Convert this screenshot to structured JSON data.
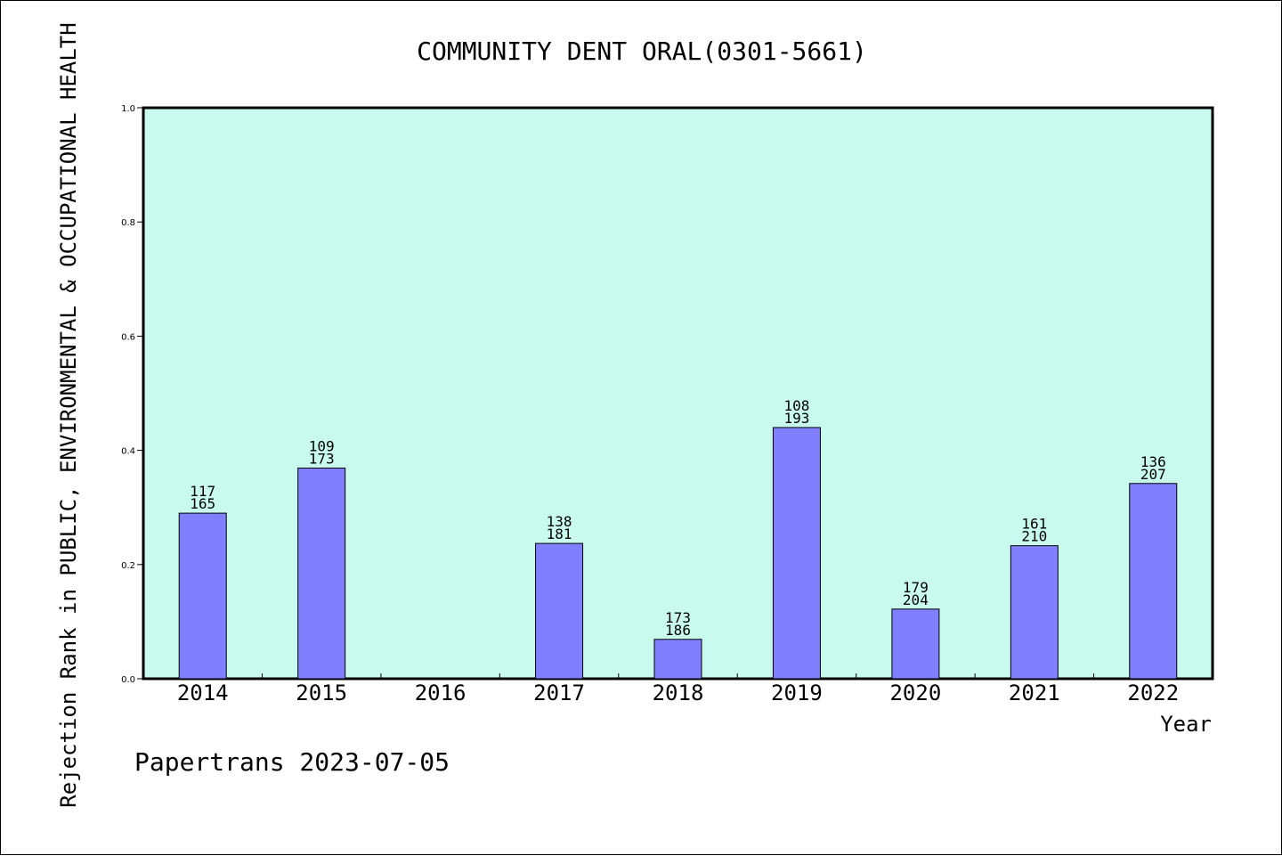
{
  "colors": {
    "plot_background": "#c8faee",
    "bar_fill": "#8080ff",
    "bar_stroke": "#000000",
    "frame": "#000000"
  },
  "chart_data": {
    "type": "bar",
    "title": "COMMUNITY DENT ORAL(0301-5661)",
    "xlabel": "Year",
    "ylabel": "Rejection Rank in PUBLIC, ENVIRONMENTAL & OCCUPATIONAL HEALTH",
    "ylim": [
      0,
      1.0
    ],
    "yticks": [
      "0.0",
      "0.2",
      "0.4",
      "0.6",
      "0.8",
      "1.0"
    ],
    "grid": false,
    "categories": [
      "2014",
      "2015",
      "2016",
      "2017",
      "2018",
      "2019",
      "2020",
      "2021",
      "2022"
    ],
    "values": [
      0.29,
      0.369,
      null,
      0.237,
      0.069,
      0.44,
      0.122,
      0.233,
      0.342
    ],
    "labels_top": [
      "117",
      "109",
      "",
      "138",
      "173",
      "108",
      "179",
      "161",
      "136"
    ],
    "labels_bottom": [
      "165",
      "173",
      "",
      "181",
      "186",
      "193",
      "204",
      "210",
      "207"
    ]
  },
  "footer": {
    "text": "Papertrans 2023-07-05"
  }
}
